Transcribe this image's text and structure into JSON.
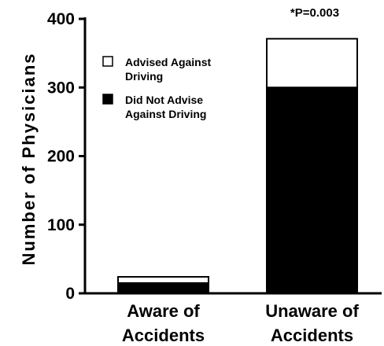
{
  "chart_data": {
    "type": "bar",
    "stacked": true,
    "categories": [
      [
        "Aware of",
        "Accidents"
      ],
      [
        "Unaware of",
        "Accidents"
      ]
    ],
    "series": [
      {
        "name": "Did Not Advise Against Driving",
        "color": "#000000",
        "values": [
          15,
          300
        ]
      },
      {
        "name": "Advised Against Driving",
        "color": "#ffffff",
        "values": [
          9,
          71
        ]
      }
    ],
    "legend": {
      "placement": "top-left",
      "entries": [
        {
          "lines": [
            "Advised Against",
            "Driving"
          ],
          "swatch": "#ffffff"
        },
        {
          "lines": [
            "Did Not Advise",
            "Against Driving"
          ],
          "swatch": "#000000"
        }
      ]
    },
    "ylabel": "Number of Physicians",
    "xlabel": "",
    "title": "",
    "annotation": "*P=0.003",
    "yticks": [
      0,
      100,
      200,
      300,
      400
    ],
    "ylim": [
      0,
      400
    ],
    "grid": false
  }
}
